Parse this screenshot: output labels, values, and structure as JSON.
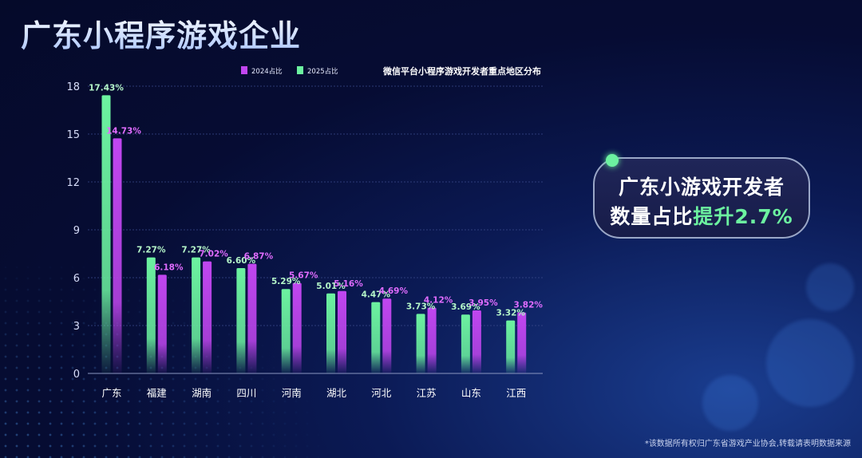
{
  "title": "广东小程序游戏企业",
  "callout": {
    "line1": "广东小游戏开发者",
    "line2_prefix": "数量占比",
    "line2_highlight": "提升2.7%"
  },
  "footnote": "*该数据所有权归广东省游戏产业协会,转载请表明数据来源",
  "colors": {
    "series2025": "#6cf2a0",
    "series2024": "#c146f0",
    "label2025": "#b4f5c8",
    "label2024": "#e06cff"
  },
  "chart_data": {
    "type": "bar",
    "title": "微信平台小程序游戏开发者重点地区分布",
    "categories": [
      "广东",
      "福建",
      "湖南",
      "四川",
      "河南",
      "湖北",
      "河北",
      "江苏",
      "山东",
      "江西"
    ],
    "series": [
      {
        "name": "2025占比",
        "values": [
          17.43,
          7.27,
          7.27,
          6.6,
          5.29,
          5.01,
          4.47,
          3.73,
          3.69,
          3.32
        ],
        "labels": [
          "17.43%",
          "7.27%",
          "7.27%",
          "6.60%",
          "5.29%",
          "5.01%",
          "4.47%",
          "3.73%",
          "3.69%",
          "3.32%"
        ]
      },
      {
        "name": "2024占比",
        "values": [
          14.73,
          6.18,
          7.02,
          6.87,
          5.67,
          5.16,
          4.69,
          4.12,
          3.95,
          3.82
        ],
        "labels": [
          "14.73%",
          "6.18%",
          "7.02%",
          "6.87%",
          "5.67%",
          "5.16%",
          "4.69%",
          "4.12%",
          "3.95%",
          "3.82%"
        ]
      }
    ],
    "legend_order": [
      "2024占比",
      "2025占比"
    ],
    "ylim": [
      0,
      18
    ],
    "yticks": [
      "0",
      "3",
      "6",
      "9",
      "12",
      "15",
      "18"
    ],
    "grid": true,
    "legend_position": "top"
  }
}
